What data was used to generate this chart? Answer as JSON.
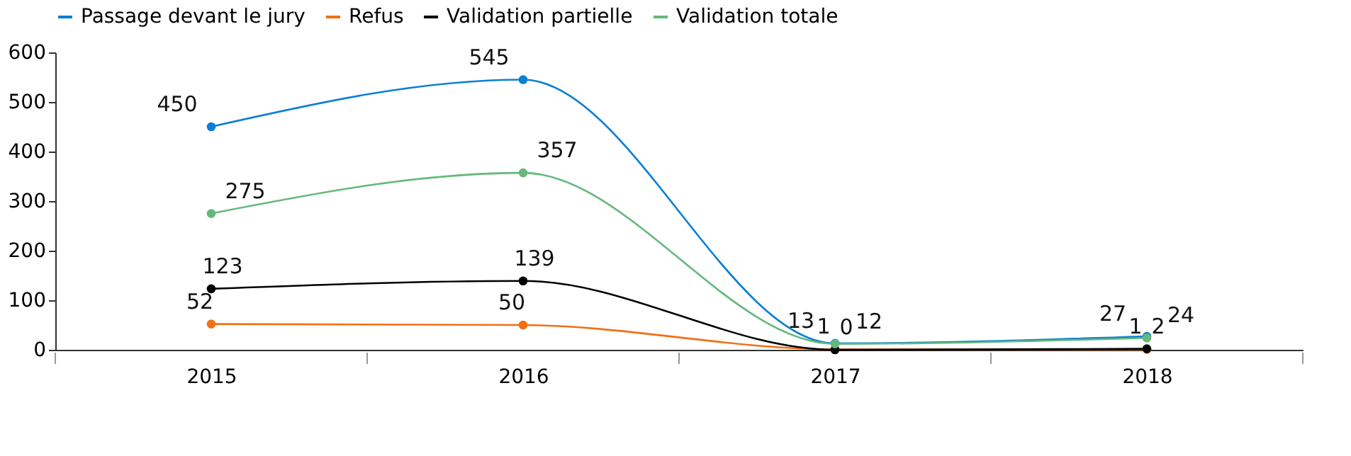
{
  "chart_data": {
    "type": "line",
    "categories": [
      "2015",
      "2016",
      "2017",
      "2018"
    ],
    "series": [
      {
        "name": "Passage devant le jury",
        "color": "#0b7fd4",
        "values": [
          450,
          545,
          13,
          27
        ]
      },
      {
        "name": "Refus",
        "color": "#f07014",
        "values": [
          52,
          50,
          1,
          1
        ]
      },
      {
        "name": "Validation partielle",
        "color": "#000000",
        "values": [
          123,
          139,
          0,
          2
        ]
      },
      {
        "name": "Validation totale",
        "color": "#66b87c",
        "values": [
          275,
          357,
          12,
          24
        ]
      }
    ],
    "ylim": [
      0,
      600
    ],
    "yticks": [
      0,
      100,
      200,
      300,
      400,
      500,
      600
    ],
    "grid": false,
    "legend": "top",
    "marker": "circle",
    "data_labels": true
  }
}
